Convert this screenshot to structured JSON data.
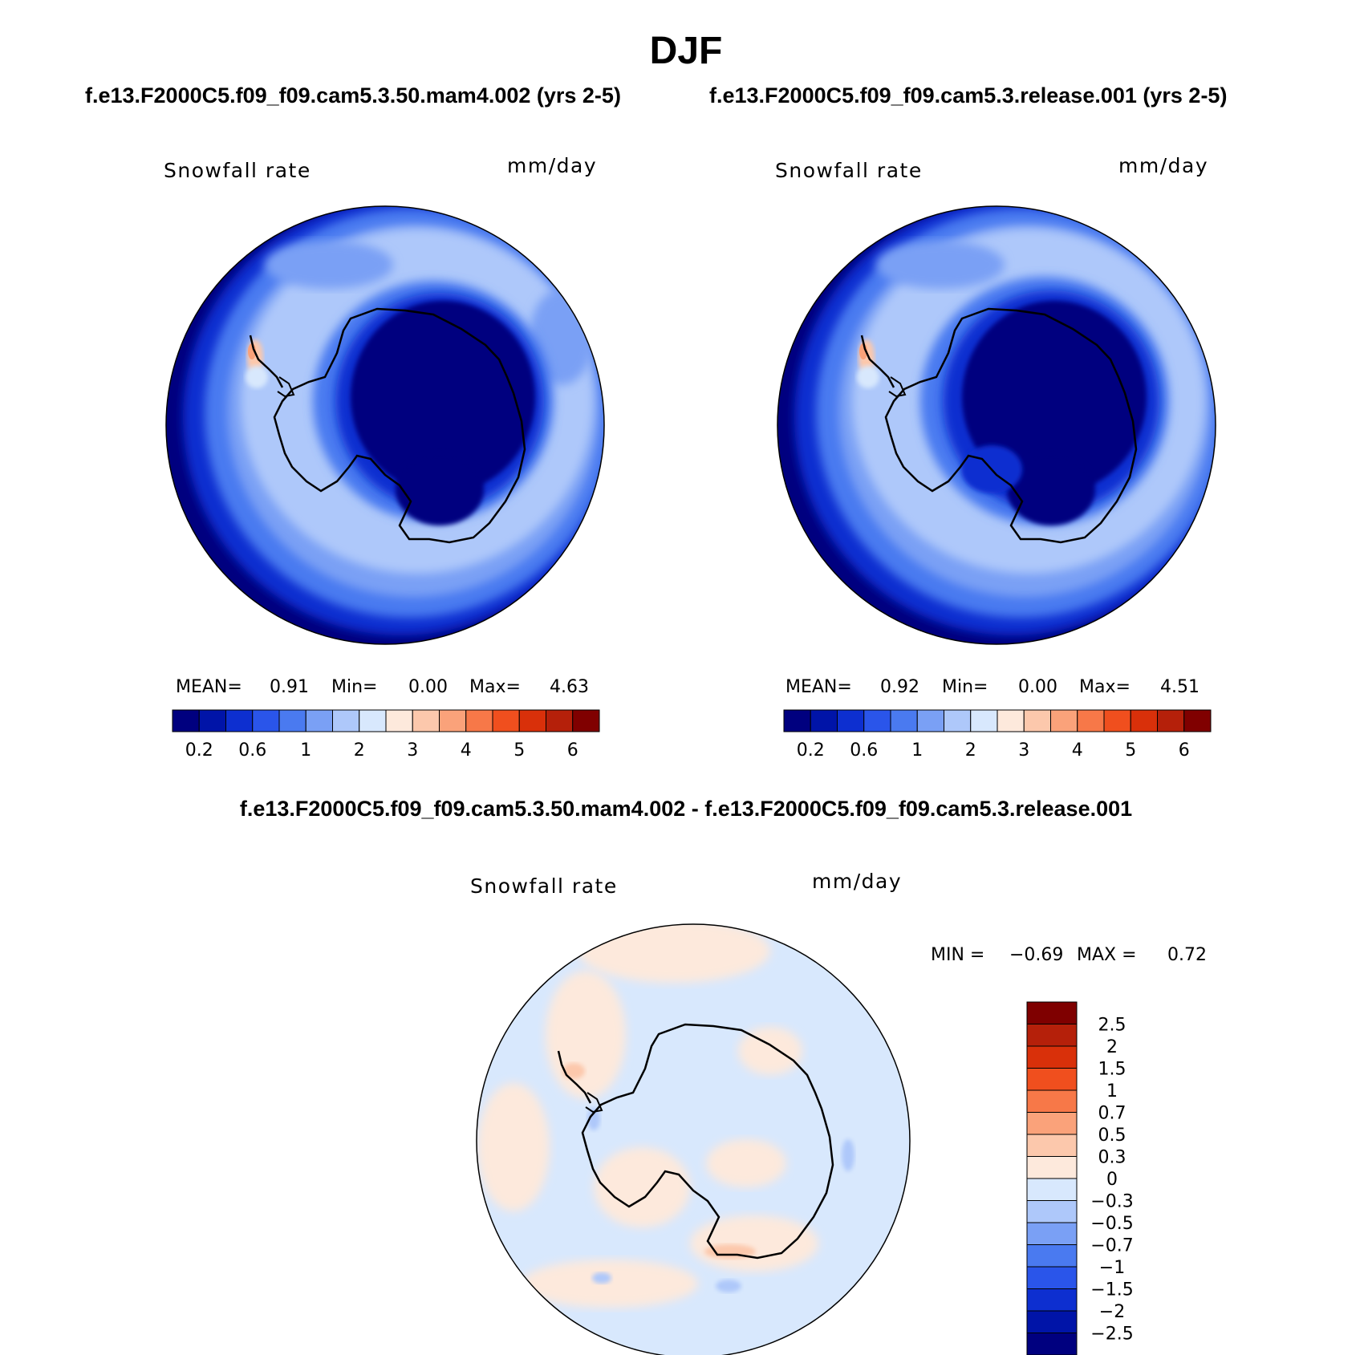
{
  "title": "DJF",
  "panels": {
    "left": {
      "case": "f.e13.F2000C5.f09_f09.cam5.3.50.mam4.002 (yrs 2-5)",
      "variable": "Snowfall rate",
      "units": "mm/day",
      "mean_label": "MEAN=",
      "mean_value": "0.91",
      "min_label": "Min=",
      "min_value": "0.00",
      "max_label": "Max=",
      "max_value": "4.63"
    },
    "right": {
      "case": "f.e13.F2000C5.f09_f09.cam5.3.release.001 (yrs 2-5)",
      "variable": "Snowfall rate",
      "units": "mm/day",
      "mean_label": "MEAN=",
      "mean_value": "0.92",
      "min_label": "Min=",
      "min_value": "0.00",
      "max_label": "Max=",
      "max_value": "4.51"
    },
    "diff": {
      "case": "f.e13.F2000C5.f09_f09.cam5.3.50.mam4.002 - f.e13.F2000C5.f09_f09.cam5.3.release.001",
      "variable": "Snowfall rate",
      "units": "mm/day",
      "min_label": "MIN =",
      "min_value": "−0.69",
      "max_label": "MAX =",
      "max_value": "0.72"
    }
  },
  "colorbar_abs": {
    "colors": [
      "#00007f",
      "#0014a8",
      "#0d2fd0",
      "#2a55ea",
      "#4a7af0",
      "#7aa0f5",
      "#aec8fa",
      "#d8e8fd",
      "#fde9dc",
      "#fcc8ac",
      "#faa27a",
      "#f77848",
      "#f04f1e",
      "#d9300a",
      "#b5200a",
      "#800000"
    ],
    "labels": [
      "0.2",
      "0.6",
      "1",
      "2",
      "3",
      "4",
      "5",
      "6"
    ]
  },
  "colorbar_diff": {
    "colors": [
      "#7f0000",
      "#b5200a",
      "#d9300a",
      "#f04f1e",
      "#f77848",
      "#faa27a",
      "#fcc8ac",
      "#fde9dc",
      "#d8e8fd",
      "#aec8fa",
      "#7aa0f5",
      "#4a7af0",
      "#2a55ea",
      "#0d2fd0",
      "#0014a8",
      "#00007f"
    ],
    "labels": [
      "2.5",
      "2",
      "1.5",
      "1",
      "0.7",
      "0.5",
      "0.3",
      "0",
      "−0.3",
      "−0.5",
      "−0.7",
      "−1",
      "−1.5",
      "−2",
      "−2.5"
    ]
  }
}
